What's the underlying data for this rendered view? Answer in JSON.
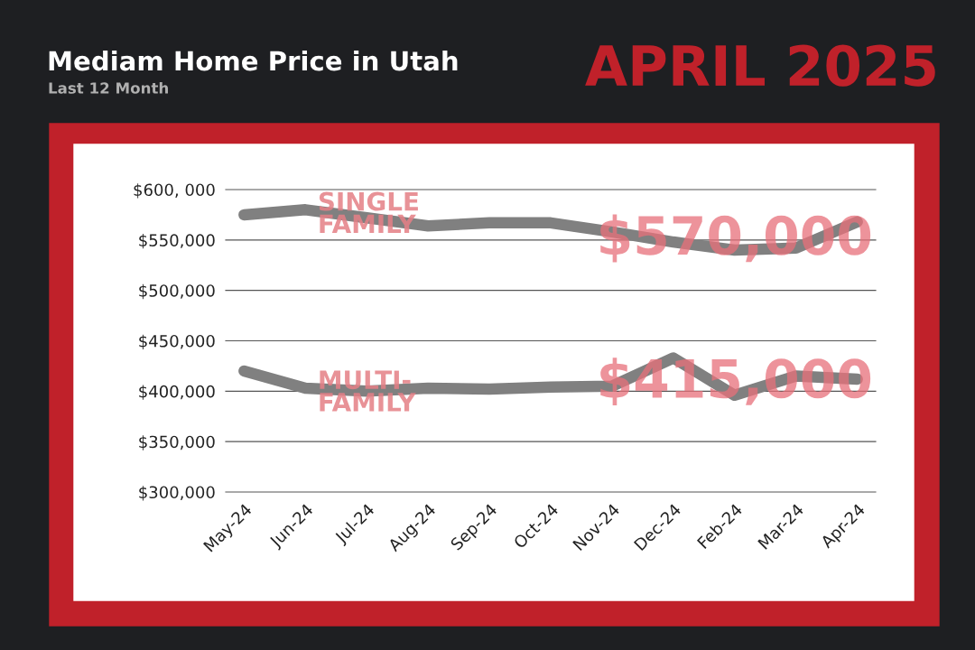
{
  "chart_data": {
    "type": "line",
    "title": "Mediam Home Price in Utah",
    "subtitle": "Last 12 Month",
    "categories": [
      "May-24",
      "Jun-24",
      "Jul-24",
      "Aug-24",
      "Sep-24",
      "Oct-24",
      "Nov-24",
      "Dec-24",
      "Feb-24",
      "Mar-24",
      "Apr-24"
    ],
    "series": [
      {
        "name": "SINGLE\nFAMILY",
        "color": "#808080",
        "values": [
          575000,
          580000,
          572000,
          564000,
          567000,
          567000,
          558000,
          548000,
          540000,
          542000,
          568000
        ]
      },
      {
        "name": "MULTI-\nFAMILY",
        "color": "#808080",
        "values": [
          420000,
          403000,
          400000,
          403000,
          402000,
          404000,
          405000,
          433000,
          396000,
          415000,
          412000
        ]
      }
    ],
    "annotations": [
      "APRIL 2025",
      {
        "text": "$570,000",
        "x": "Feb-24",
        "y": 550000
      },
      {
        "text": "$415,000",
        "x": "Feb-24",
        "y": 408000
      }
    ],
    "ylim": [
      300000,
      600000
    ],
    "yticks": [
      {
        "value": 300000,
        "label": "$300,000"
      },
      {
        "value": 350000,
        "label": "$350,000"
      },
      {
        "value": 400000,
        "label": "$400,000"
      },
      {
        "value": 450000,
        "label": "$450,000"
      },
      {
        "value": 500000,
        "label": "$500,000"
      },
      {
        "value": 550000,
        "label": "$550,000"
      },
      {
        "value": 600000,
        "label": "$600, 000"
      }
    ],
    "grid": "y",
    "legend": false,
    "line_style": "solid"
  }
}
